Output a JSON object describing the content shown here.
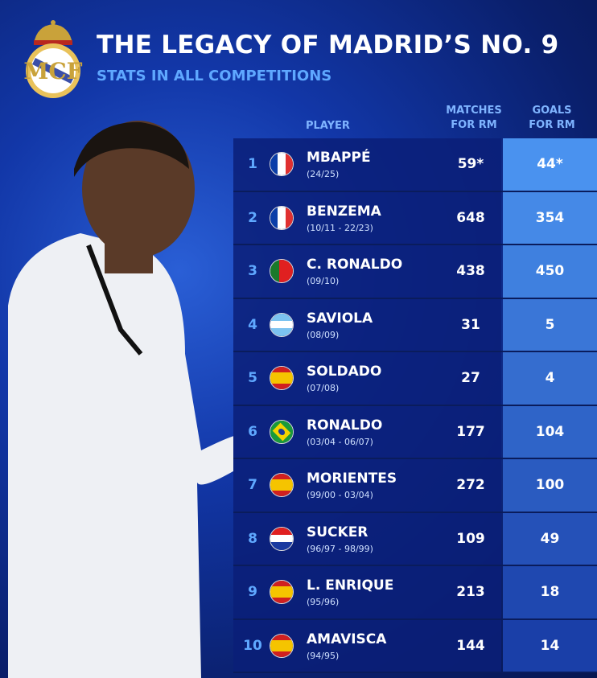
{
  "header": {
    "title": "THE LEGACY OF MADRID’S NO. 9",
    "subtitle": "STATS IN ALL COMPETITIONS"
  },
  "columns": {
    "player": "PLAYER",
    "matches": [
      "MATCHES",
      "FOR RM"
    ],
    "goals": [
      "GOALS",
      "FOR RM"
    ]
  },
  "colors": {
    "accent": "#5fa8ff",
    "row_bg": "#0a1e78",
    "goals_top": "#4a92ef",
    "goals_bottom": "#1a3fa8"
  },
  "rows": [
    {
      "rank": "1",
      "flag": "france",
      "name": "MBAPPÉ",
      "years": "(24/25)",
      "matches": "59*",
      "goals": "44*"
    },
    {
      "rank": "2",
      "flag": "france",
      "name": "BENZEMA",
      "years": "(10/11 - 22/23)",
      "matches": "648",
      "goals": "354"
    },
    {
      "rank": "3",
      "flag": "portugal",
      "name": "C. RONALDO",
      "years": "(09/10)",
      "matches": "438",
      "goals": "450"
    },
    {
      "rank": "4",
      "flag": "argentina",
      "name": "SAVIOLA",
      "years": "(08/09)",
      "matches": "31",
      "goals": "5"
    },
    {
      "rank": "5",
      "flag": "spain",
      "name": "SOLDADO",
      "years": "(07/08)",
      "matches": "27",
      "goals": "4"
    },
    {
      "rank": "6",
      "flag": "brazil",
      "name": "RONALDO",
      "years": "(03/04 - 06/07)",
      "matches": "177",
      "goals": "104"
    },
    {
      "rank": "7",
      "flag": "spain",
      "name": "MORIENTES",
      "years": "(99/00 - 03/04)",
      "matches": "272",
      "goals": "100"
    },
    {
      "rank": "8",
      "flag": "croatia",
      "name": "SUCKER",
      "years": "(96/97 - 98/99)",
      "matches": "109",
      "goals": "49"
    },
    {
      "rank": "9",
      "flag": "spain",
      "name": "L. ENRIQUE",
      "years": "(95/96)",
      "matches": "213",
      "goals": "18"
    },
    {
      "rank": "10",
      "flag": "spain",
      "name": "AMAVISCA",
      "years": "(94/95)",
      "matches": "144",
      "goals": "14"
    }
  ]
}
